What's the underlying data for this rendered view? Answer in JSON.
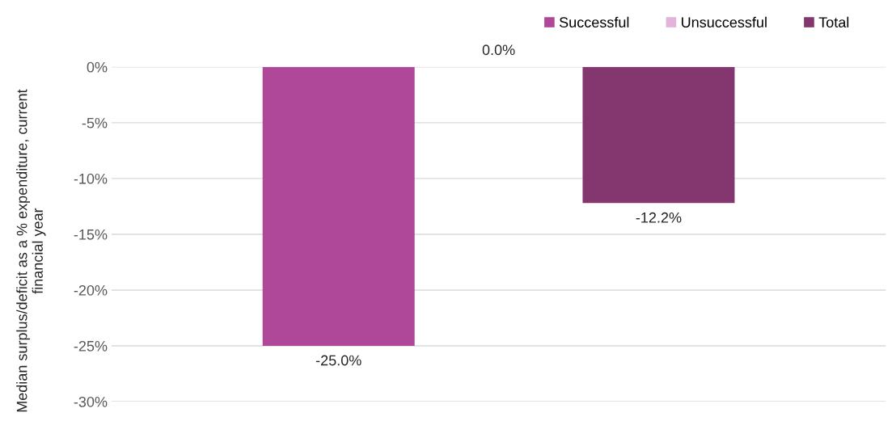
{
  "chart_data": {
    "type": "bar",
    "ylabel": "Median surplus/deficit as a % expenditure, current financial year",
    "categories": [
      null
    ],
    "series": [
      {
        "name": "Successful",
        "color": "#b0489a",
        "values": [
          -25.0
        ],
        "value_labels": [
          "-25.0%"
        ]
      },
      {
        "name": "Unsuccessful",
        "color": "#e3b3dc",
        "values": [
          0.0
        ],
        "value_labels": [
          "0.0%"
        ]
      },
      {
        "name": "Total",
        "color": "#84366f",
        "values": [
          -12.2
        ],
        "value_labels": [
          "-12.2%"
        ]
      }
    ],
    "ylim": [
      -30,
      0
    ],
    "yticks": [
      {
        "value": -30,
        "label": "-30%"
      },
      {
        "value": -25,
        "label": "-25%"
      },
      {
        "value": -20,
        "label": "-20%"
      },
      {
        "value": -15,
        "label": "-15%"
      },
      {
        "value": -10,
        "label": "-10%"
      },
      {
        "value": -5,
        "label": "-5%"
      },
      {
        "value": 0,
        "label": "0%"
      }
    ],
    "grid": "y",
    "legend": "top right"
  }
}
